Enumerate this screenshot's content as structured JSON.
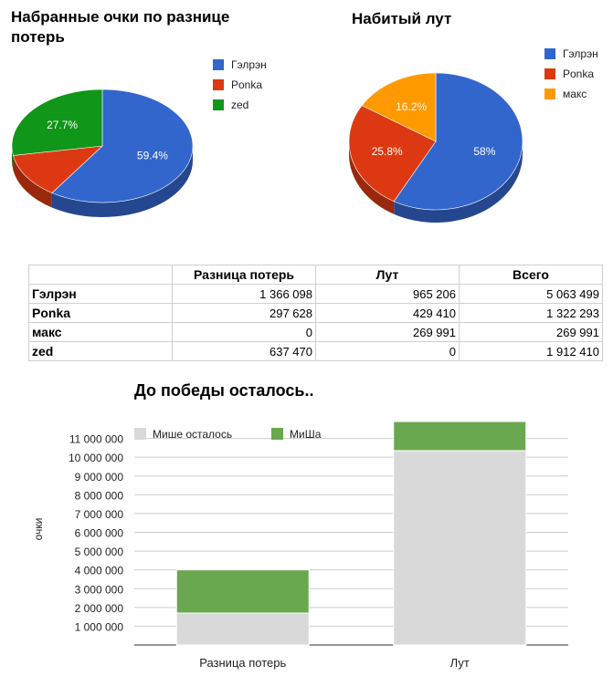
{
  "chart_data": [
    {
      "type": "pie",
      "title": "Набранные очки по разнице потерь",
      "slices": [
        {
          "label": "Гэлрэн",
          "value": 59.4,
          "text": "59.4%",
          "color": "#3366cc"
        },
        {
          "label": "Ponka",
          "value": 12.9,
          "text": "",
          "color": "#dc3912"
        },
        {
          "label": "zed",
          "value": 27.7,
          "text": "27.7%",
          "color": "#109618"
        }
      ],
      "legend_position": "right"
    },
    {
      "type": "pie",
      "title": "Набитый лут",
      "slices": [
        {
          "label": "Гэлрэн",
          "value": 58,
          "text": "58%",
          "color": "#3366cc"
        },
        {
          "label": "Ponka",
          "value": 25.8,
          "text": "25.8%",
          "color": "#dc3912"
        },
        {
          "label": "макс",
          "value": 16.2,
          "text": "16.2%",
          "color": "#ff9900"
        }
      ],
      "legend_position": "right"
    },
    {
      "type": "table",
      "columns": [
        "",
        "Разница потерь",
        "Лут",
        "Всего"
      ],
      "rows": [
        [
          "Гэлрэн",
          "1 366 098",
          "965 206",
          "5 063 499"
        ],
        [
          "Ponka",
          "297 628",
          "429 410",
          "1 322 293"
        ],
        [
          "макс",
          "0",
          "269 991",
          "269 991"
        ],
        [
          "zed",
          "637 470",
          "0",
          "1 912 410"
        ]
      ]
    },
    {
      "type": "bar",
      "stacked": true,
      "title": "До победы осталось..",
      "ylabel": "очки",
      "categories": [
        "Разница потерь",
        "Лут"
      ],
      "series": [
        {
          "name": "Мише осталось",
          "values": [
            1700000,
            10350000
          ],
          "color": "#d9d9d9"
        },
        {
          "name": "МиШа",
          "values": [
            2300000,
            1550000
          ],
          "color": "#6aa84f"
        }
      ],
      "ylim": [
        0,
        12000000
      ],
      "yticks": [
        {
          "value": 1000000,
          "label": "1 000 000"
        },
        {
          "value": 2000000,
          "label": "2 000 000"
        },
        {
          "value": 3000000,
          "label": "3 000 000"
        },
        {
          "value": 4000000,
          "label": "4 000 000"
        },
        {
          "value": 5000000,
          "label": "5 000 000"
        },
        {
          "value": 6000000,
          "label": "6 000 000"
        },
        {
          "value": 7000000,
          "label": "7 000 000"
        },
        {
          "value": 8000000,
          "label": "8 000 000"
        },
        {
          "value": 9000000,
          "label": "9 000 000"
        },
        {
          "value": 10000000,
          "label": "10 000 000"
        },
        {
          "value": 11000000,
          "label": "11 000 000"
        }
      ],
      "grid": true,
      "legend_position": "top"
    }
  ]
}
